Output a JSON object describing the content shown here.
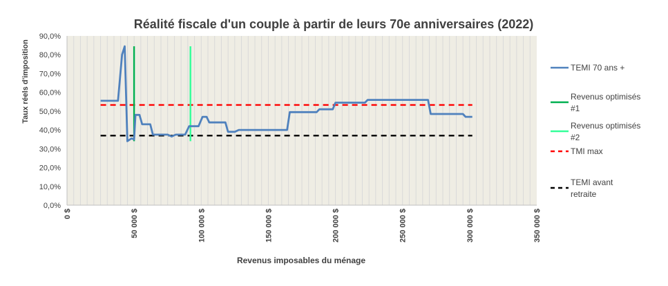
{
  "chart_data": {
    "type": "line",
    "title": "Réalité fiscale d'un couple à partir de leurs 70e anniversaires (2022)",
    "xlabel": "Revenus imposables du ménage",
    "ylabel": "Taux réels d'imposition",
    "xlim": [
      0,
      350000
    ],
    "ylim": [
      0,
      0.9
    ],
    "x_ticks": [
      0,
      50000,
      100000,
      150000,
      200000,
      250000,
      300000,
      350000
    ],
    "x_tick_labels": [
      "0 $",
      "50 000 $",
      "100 000 $",
      "150 000 $",
      "200 000 $",
      "250 000 $",
      "300 000 $",
      "350 000 $"
    ],
    "y_ticks": [
      0,
      0.1,
      0.2,
      0.3,
      0.4,
      0.5,
      0.6,
      0.7,
      0.8,
      0.9
    ],
    "y_tick_labels": [
      "0,0%",
      "10,0%",
      "20,0%",
      "30,0%",
      "40,0%",
      "50,0%",
      "60,0%",
      "70,0%",
      "80,0%",
      "90,0%"
    ],
    "grid": "vertical",
    "legend_position": "right",
    "colors": {
      "plot_bg": "#efede4",
      "grid": "#d9d9d9",
      "temi": "#4f81bd",
      "opt1": "#00b050",
      "opt2": "#33ff99",
      "tmi_max": "#ff0000",
      "temi_avant": "#000000"
    },
    "series": [
      {
        "name": "TEMI 70 ans +",
        "style": "solid",
        "color_key": "temi",
        "points": [
          [
            25000,
            0.555
          ],
          [
            38000,
            0.555
          ],
          [
            41000,
            0.8
          ],
          [
            43000,
            0.845
          ],
          [
            45000,
            0.34
          ],
          [
            48000,
            0.355
          ],
          [
            50000,
            0.35
          ],
          [
            51000,
            0.48
          ],
          [
            54000,
            0.48
          ],
          [
            56000,
            0.43
          ],
          [
            62000,
            0.43
          ],
          [
            64000,
            0.375
          ],
          [
            75000,
            0.375
          ],
          [
            78000,
            0.365
          ],
          [
            81000,
            0.375
          ],
          [
            88000,
            0.375
          ],
          [
            91000,
            0.42
          ],
          [
            98000,
            0.42
          ],
          [
            101000,
            0.47
          ],
          [
            104000,
            0.47
          ],
          [
            106000,
            0.44
          ],
          [
            118000,
            0.44
          ],
          [
            120000,
            0.39
          ],
          [
            125000,
            0.39
          ],
          [
            128000,
            0.4
          ],
          [
            164000,
            0.4
          ],
          [
            166000,
            0.495
          ],
          [
            186000,
            0.495
          ],
          [
            188000,
            0.51
          ],
          [
            198000,
            0.51
          ],
          [
            200000,
            0.545
          ],
          [
            222000,
            0.545
          ],
          [
            224000,
            0.56
          ],
          [
            269000,
            0.56
          ],
          [
            271000,
            0.485
          ],
          [
            295000,
            0.485
          ],
          [
            297000,
            0.47
          ],
          [
            302000,
            0.47
          ]
        ]
      },
      {
        "name": "Revenus optimisés #1",
        "style": "solid",
        "color_key": "opt1",
        "points": [
          [
            50000,
            0.34
          ],
          [
            50000,
            0.845
          ]
        ]
      },
      {
        "name": "Revenus optimisés #2",
        "style": "solid",
        "color_key": "opt2",
        "points": [
          [
            92000,
            0.34
          ],
          [
            92000,
            0.845
          ]
        ]
      },
      {
        "name": "TMI max",
        "style": "dashed",
        "color_key": "tmi_max",
        "points": [
          [
            25000,
            0.533
          ],
          [
            302000,
            0.533
          ]
        ]
      },
      {
        "name": "TEMI avant retraite",
        "style": "dashed",
        "color_key": "temi_avant",
        "points": [
          [
            25000,
            0.37
          ],
          [
            302000,
            0.37
          ]
        ]
      }
    ]
  }
}
